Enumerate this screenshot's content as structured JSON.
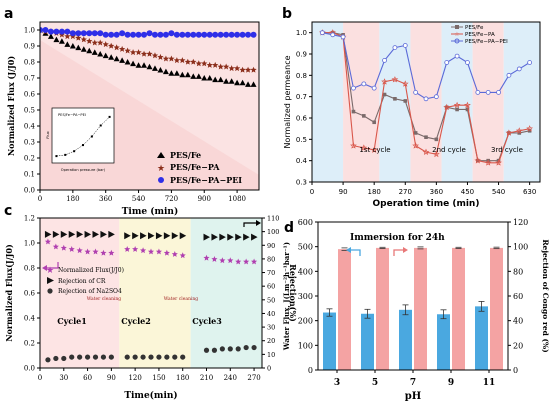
{
  "chart_data": [
    {
      "panel": "a",
      "type": "scatter",
      "xlabel": "Time (min)",
      "ylabel": "Normalized Flux (J/J0)",
      "xlim": [
        0,
        1200
      ],
      "ylim": [
        0.0,
        1.05
      ],
      "xticks": [
        0,
        180,
        360,
        540,
        720,
        900,
        1080
      ],
      "yticks": [
        0.0,
        0.1,
        0.2,
        0.3,
        0.4,
        0.5,
        0.6,
        0.7,
        0.8,
        0.9,
        1.0
      ],
      "legend_position": "bottom-right",
      "series": [
        {
          "name": "PES/Fe",
          "marker": "triangle",
          "color": "#000000",
          "x": [
            0,
            30,
            60,
            90,
            120,
            150,
            180,
            210,
            240,
            270,
            300,
            330,
            360,
            390,
            420,
            450,
            480,
            510,
            540,
            570,
            600,
            630,
            660,
            690,
            720,
            750,
            780,
            810,
            840,
            870,
            900,
            930,
            960,
            990,
            1020,
            1050,
            1080,
            1110,
            1140,
            1170
          ],
          "y": [
            1.0,
            0.98,
            0.96,
            0.94,
            0.93,
            0.91,
            0.9,
            0.89,
            0.88,
            0.87,
            0.86,
            0.85,
            0.84,
            0.83,
            0.82,
            0.81,
            0.8,
            0.79,
            0.78,
            0.78,
            0.77,
            0.76,
            0.75,
            0.74,
            0.73,
            0.73,
            0.72,
            0.72,
            0.71,
            0.71,
            0.7,
            0.7,
            0.69,
            0.69,
            0.68,
            0.68,
            0.67,
            0.67,
            0.66,
            0.66
          ]
        },
        {
          "name": "PES/Fe−PA",
          "marker": "star",
          "color": "#8b2e1b",
          "x": [
            0,
            30,
            60,
            90,
            120,
            150,
            180,
            210,
            240,
            270,
            300,
            330,
            360,
            390,
            420,
            450,
            480,
            510,
            540,
            570,
            600,
            630,
            660,
            690,
            720,
            750,
            780,
            810,
            840,
            870,
            900,
            930,
            960,
            990,
            1020,
            1050,
            1080,
            1110,
            1140,
            1170
          ],
          "y": [
            1.0,
            0.99,
            0.99,
            0.98,
            0.97,
            0.96,
            0.96,
            0.95,
            0.94,
            0.93,
            0.92,
            0.92,
            0.91,
            0.9,
            0.89,
            0.88,
            0.87,
            0.86,
            0.86,
            0.85,
            0.85,
            0.84,
            0.83,
            0.82,
            0.82,
            0.81,
            0.81,
            0.8,
            0.8,
            0.79,
            0.79,
            0.78,
            0.78,
            0.77,
            0.77,
            0.76,
            0.76,
            0.75,
            0.75,
            0.75
          ]
        },
        {
          "name": "PES/Fe−PA−PEI",
          "marker": "circle",
          "color": "#2f2fe8",
          "x": [
            0,
            30,
            60,
            90,
            120,
            150,
            180,
            210,
            240,
            270,
            300,
            330,
            360,
            390,
            420,
            450,
            480,
            510,
            540,
            570,
            600,
            630,
            660,
            690,
            720,
            750,
            780,
            810,
            840,
            870,
            900,
            930,
            960,
            990,
            1020,
            1050,
            1080,
            1110,
            1140,
            1170
          ],
          "y": [
            1.0,
            1.0,
            0.99,
            0.99,
            0.99,
            0.99,
            0.98,
            0.98,
            0.98,
            0.98,
            0.98,
            0.98,
            0.97,
            0.97,
            0.97,
            0.98,
            0.97,
            0.97,
            0.97,
            0.97,
            0.98,
            0.97,
            0.97,
            0.97,
            0.98,
            0.97,
            0.97,
            0.97,
            0.97,
            0.97,
            0.97,
            0.97,
            0.97,
            0.97,
            0.97,
            0.97,
            0.97,
            0.97,
            0.97,
            0.97
          ]
        }
      ],
      "inset": {
        "title": "PES/Fe−PA−PEI",
        "xlabel": "Operation pressure (bar)",
        "ylabel": "Flux",
        "x": [
          1,
          2,
          3,
          4,
          5,
          6,
          7
        ],
        "y": [
          0.4,
          0.5,
          0.8,
          1.3,
          2.0,
          2.9,
          3.6
        ]
      }
    },
    {
      "panel": "b",
      "type": "line",
      "xlabel": "Operation time (min)",
      "ylabel": "Normalized permeance",
      "xlim": [
        0,
        660
      ],
      "ylim": [
        0.3,
        1.05
      ],
      "xticks": [
        0,
        90,
        180,
        270,
        360,
        450,
        540,
        630
      ],
      "yticks": [
        0.3,
        0.4,
        0.5,
        0.6,
        0.7,
        0.8,
        0.9,
        1.0
      ],
      "legend_position": "top-right",
      "annotations": [
        "1st cycle",
        "2nd cycle",
        "3rd cycle"
      ],
      "series": [
        {
          "name": "PES/Fe",
          "color": "#7a6a6a",
          "x": [
            30,
            60,
            90,
            120,
            150,
            180,
            210,
            240,
            270,
            300,
            330,
            360,
            390,
            420,
            450,
            480,
            510,
            540,
            570,
            600,
            630
          ],
          "y": [
            1.0,
            1.0,
            0.99,
            0.63,
            0.61,
            0.58,
            0.71,
            0.69,
            0.68,
            0.53,
            0.51,
            0.5,
            0.65,
            0.64,
            0.64,
            0.4,
            0.4,
            0.4,
            0.53,
            0.53,
            0.54
          ]
        },
        {
          "name": "PES/Fe−PA",
          "color": "#d9574b",
          "x": [
            30,
            60,
            90,
            120,
            150,
            180,
            210,
            240,
            270,
            300,
            330,
            360,
            390,
            420,
            450,
            480,
            510,
            540,
            570,
            600,
            630
          ],
          "y": [
            1.0,
            1.0,
            0.98,
            0.47,
            0.46,
            0.45,
            0.77,
            0.78,
            0.76,
            0.47,
            0.44,
            0.43,
            0.65,
            0.66,
            0.66,
            0.4,
            0.39,
            0.39,
            0.53,
            0.54,
            0.55
          ]
        },
        {
          "name": "PES/Fe−PA−PEI",
          "color": "#5b6ad8",
          "x": [
            30,
            60,
            90,
            120,
            150,
            180,
            210,
            240,
            270,
            300,
            330,
            360,
            390,
            420,
            450,
            480,
            510,
            540,
            570,
            600,
            630
          ],
          "y": [
            1.0,
            0.99,
            0.98,
            0.74,
            0.76,
            0.74,
            0.87,
            0.93,
            0.94,
            0.72,
            0.69,
            0.7,
            0.86,
            0.89,
            0.86,
            0.72,
            0.72,
            0.72,
            0.8,
            0.83,
            0.86
          ]
        }
      ]
    },
    {
      "panel": "c",
      "type": "scatter",
      "xlabel": "Time(min)",
      "ylabel": "Normalized Flux(J/J0)",
      "y2label": "Rejection(%)",
      "xlim": [
        0,
        280
      ],
      "ylim": [
        0.0,
        1.2
      ],
      "y2lim": [
        0,
        110
      ],
      "xticks": [
        0,
        30,
        60,
        90,
        120,
        150,
        180,
        210,
        240,
        270
      ],
      "yticks": [
        0.0,
        0.2,
        0.4,
        0.6,
        0.8,
        1.0,
        1.2
      ],
      "y2ticks": [
        0,
        10,
        20,
        30,
        40,
        50,
        60,
        70,
        80,
        90,
        100,
        110
      ],
      "legend_position": "left",
      "annotations": [
        "Cycle1",
        "Cycle2",
        "Cycle3",
        "Water cleaning",
        "Water cleaning"
      ],
      "series": [
        {
          "name": "Normalized Flux(J/J0)",
          "axis": "left",
          "marker": "star",
          "color": "#b03fb0",
          "x": [
            10,
            20,
            30,
            40,
            50,
            60,
            70,
            80,
            90,
            110,
            120,
            130,
            140,
            150,
            160,
            170,
            180,
            210,
            220,
            230,
            240,
            250,
            260,
            270
          ],
          "y": [
            1.01,
            0.97,
            0.96,
            0.95,
            0.94,
            0.93,
            0.93,
            0.92,
            0.92,
            0.95,
            0.95,
            0.94,
            0.93,
            0.93,
            0.92,
            0.91,
            0.9,
            0.88,
            0.87,
            0.86,
            0.86,
            0.85,
            0.85,
            0.85
          ]
        },
        {
          "name": "Rejection of CR",
          "axis": "right",
          "marker": "triangle-right",
          "color": "#111111",
          "x": [
            10,
            20,
            30,
            40,
            50,
            60,
            70,
            80,
            90,
            110,
            120,
            130,
            140,
            150,
            160,
            170,
            180,
            210,
            220,
            230,
            240,
            250,
            260,
            270
          ],
          "y": [
            98,
            98,
            98,
            98,
            98,
            98,
            98,
            98,
            98,
            97,
            97,
            97,
            97,
            97,
            97,
            97,
            97,
            96,
            96,
            96,
            96,
            96,
            96,
            96
          ]
        },
        {
          "name": "Rejection of Na2SO4",
          "axis": "right",
          "marker": "circle",
          "color": "#333333",
          "x": [
            10,
            20,
            30,
            40,
            50,
            60,
            70,
            80,
            90,
            110,
            120,
            130,
            140,
            150,
            160,
            170,
            180,
            210,
            220,
            230,
            240,
            250,
            260,
            270
          ],
          "y": [
            6,
            7,
            7,
            8,
            8,
            8,
            8,
            8,
            8,
            8,
            8,
            8,
            8,
            8,
            8,
            8,
            8,
            13,
            13,
            14,
            14,
            14,
            15,
            15
          ]
        }
      ]
    },
    {
      "panel": "d",
      "type": "bar",
      "title": "Immersion for 24h",
      "xlabel": "pH",
      "ylabel": "Water Flux, J(Lm⁻²h⁻¹bar⁻¹)",
      "y2label": "Rejection of Congo red (%)",
      "categories": [
        "3",
        "5",
        "7",
        "9",
        "11"
      ],
      "ylim": [
        0,
        600
      ],
      "y2lim": [
        0,
        120
      ],
      "yticks": [
        0,
        100,
        200,
        300,
        400,
        500,
        600
      ],
      "y2ticks": [
        0,
        20,
        40,
        60,
        80,
        100,
        120
      ],
      "series": [
        {
          "name": "Water flux",
          "axis": "left",
          "color": "#4aa8e0",
          "values": [
            233,
            228,
            244,
            226,
            258
          ],
          "errors": [
            15,
            18,
            20,
            18,
            20
          ]
        },
        {
          "name": "Rejection of Congo red",
          "axis": "right",
          "color": "#f4a3a3",
          "values": [
            98,
            99,
            99,
            99,
            99
          ],
          "errors": [
            1,
            0.5,
            0.8,
            0.5,
            0.6
          ]
        }
      ]
    }
  ]
}
